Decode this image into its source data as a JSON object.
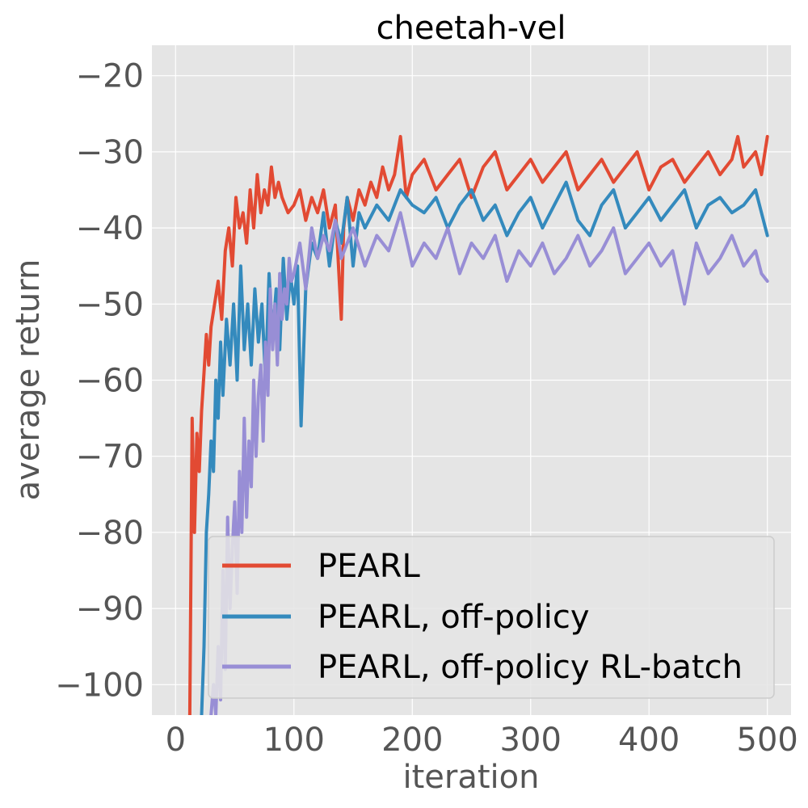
{
  "chart_data": {
    "type": "line",
    "title": "cheetah-vel",
    "xlabel": "iteration",
    "ylabel": "average return",
    "xlim": [
      -20,
      520
    ],
    "ylim": [
      -104,
      -16
    ],
    "xticks": [
      0,
      100,
      200,
      300,
      400,
      500
    ],
    "yticks": [
      -100,
      -90,
      -80,
      -70,
      -60,
      -50,
      -40,
      -30,
      -20
    ],
    "xtick_labels": [
      "0",
      "100",
      "200",
      "300",
      "400",
      "500"
    ],
    "ytick_labels": [
      "−100",
      "−90",
      "−80",
      "−70",
      "−60",
      "−50",
      "−40",
      "−30",
      "−20"
    ],
    "grid": true,
    "style": "ggplot",
    "legend_position": "lower-right",
    "series": [
      {
        "name": "PEARL",
        "color": "#E24A33",
        "x": [
          12,
          14,
          16,
          18,
          20,
          22,
          24,
          26,
          28,
          30,
          33,
          36,
          39,
          42,
          45,
          48,
          51,
          54,
          57,
          60,
          63,
          66,
          69,
          72,
          75,
          78,
          81,
          84,
          87,
          90,
          95,
          100,
          105,
          110,
          115,
          120,
          125,
          130,
          135,
          140,
          142,
          145,
          150,
          155,
          160,
          165,
          170,
          175,
          180,
          185,
          190,
          195,
          200,
          210,
          220,
          230,
          240,
          250,
          260,
          270,
          280,
          290,
          300,
          310,
          320,
          330,
          340,
          350,
          360,
          370,
          380,
          390,
          400,
          410,
          420,
          430,
          440,
          450,
          460,
          470,
          475,
          480,
          490,
          495,
          500
        ],
        "y": [
          -104,
          -65,
          -80,
          -67,
          -72,
          -64,
          -59,
          -54,
          -58,
          -53,
          -50,
          -47,
          -52,
          -43,
          -40,
          -45,
          -36,
          -40,
          -38,
          -42,
          -35,
          -40,
          -33,
          -38,
          -35,
          -37,
          -32,
          -36,
          -34,
          -36,
          -38,
          -37,
          -35,
          -39,
          -36,
          -38,
          -35,
          -40,
          -37,
          -52,
          -40,
          -36,
          -39,
          -35,
          -37,
          -34,
          -36,
          -32,
          -35,
          -33,
          -28,
          -36,
          -33,
          -31,
          -35,
          -33,
          -31,
          -36,
          -32,
          -30,
          -35,
          -33,
          -31,
          -34,
          -32,
          -30,
          -35,
          -33,
          -31,
          -34,
          -32,
          -30,
          -35,
          -32,
          -31,
          -34,
          -32,
          -30,
          -33,
          -31,
          -28,
          -32,
          -30,
          -33,
          -28
        ]
      },
      {
        "name": "PEARL, off-policy",
        "color": "#348ABD",
        "x": [
          22,
          24,
          26,
          28,
          30,
          32,
          34,
          36,
          38,
          40,
          43,
          46,
          49,
          52,
          55,
          58,
          61,
          64,
          67,
          70,
          73,
          76,
          79,
          82,
          85,
          88,
          91,
          94,
          97,
          100,
          103,
          106,
          110,
          115,
          120,
          125,
          130,
          135,
          140,
          145,
          150,
          155,
          160,
          170,
          180,
          190,
          200,
          210,
          220,
          230,
          240,
          250,
          260,
          270,
          280,
          290,
          300,
          310,
          320,
          330,
          340,
          350,
          360,
          370,
          380,
          390,
          400,
          410,
          420,
          430,
          440,
          450,
          460,
          470,
          480,
          490,
          500
        ],
        "y": [
          -104,
          -95,
          -80,
          -75,
          -68,
          -72,
          -60,
          -65,
          -55,
          -62,
          -52,
          -58,
          -50,
          -60,
          -45,
          -56,
          -50,
          -58,
          -48,
          -55,
          -50,
          -60,
          -46,
          -54,
          -48,
          -56,
          -44,
          -52,
          -46,
          -50,
          -45,
          -66,
          -48,
          -42,
          -44,
          -38,
          -45,
          -39,
          -42,
          -36,
          -45,
          -38,
          -40,
          -37,
          -39,
          -35,
          -37,
          -38,
          -36,
          -40,
          -37,
          -35,
          -39,
          -37,
          -41,
          -38,
          -36,
          -40,
          -37,
          -34,
          -39,
          -41,
          -37,
          -35,
          -40,
          -38,
          -36,
          -39,
          -37,
          -35,
          -40,
          -37,
          -36,
          -38,
          -37,
          -35,
          -41
        ]
      },
      {
        "name": "PEARL, off-policy RL-batch",
        "color": "#988ED5",
        "x": [
          30,
          32,
          34,
          36,
          38,
          40,
          42,
          44,
          46,
          48,
          50,
          52,
          54,
          56,
          58,
          60,
          62,
          64,
          66,
          68,
          70,
          72,
          74,
          76,
          78,
          80,
          82,
          84,
          86,
          88,
          90,
          92,
          94,
          96,
          98,
          100,
          105,
          110,
          115,
          120,
          125,
          130,
          135,
          140,
          150,
          160,
          170,
          180,
          190,
          200,
          210,
          220,
          230,
          240,
          250,
          260,
          270,
          280,
          290,
          300,
          310,
          320,
          330,
          340,
          350,
          360,
          370,
          380,
          390,
          400,
          410,
          420,
          430,
          440,
          450,
          460,
          470,
          480,
          490,
          495,
          500
        ],
        "y": [
          -104,
          -100,
          -104,
          -95,
          -102,
          -85,
          -98,
          -78,
          -90,
          -82,
          -76,
          -88,
          -72,
          -80,
          -65,
          -78,
          -68,
          -74,
          -60,
          -70,
          -62,
          -58,
          -68,
          -55,
          -62,
          -48,
          -56,
          -50,
          -58,
          -46,
          -52,
          -48,
          -50,
          -44,
          -47,
          -46,
          -42,
          -48,
          -40,
          -44,
          -41,
          -43,
          -39,
          -44,
          -40,
          -45,
          -41,
          -43,
          -38,
          -45,
          -42,
          -44,
          -40,
          -46,
          -42,
          -44,
          -41,
          -47,
          -43,
          -45,
          -42,
          -46,
          -44,
          -41,
          -45,
          -43,
          -40,
          -46,
          -44,
          -42,
          -45,
          -43,
          -50,
          -42,
          -46,
          -44,
          -41,
          -45,
          -43,
          -46,
          -47
        ]
      }
    ]
  }
}
